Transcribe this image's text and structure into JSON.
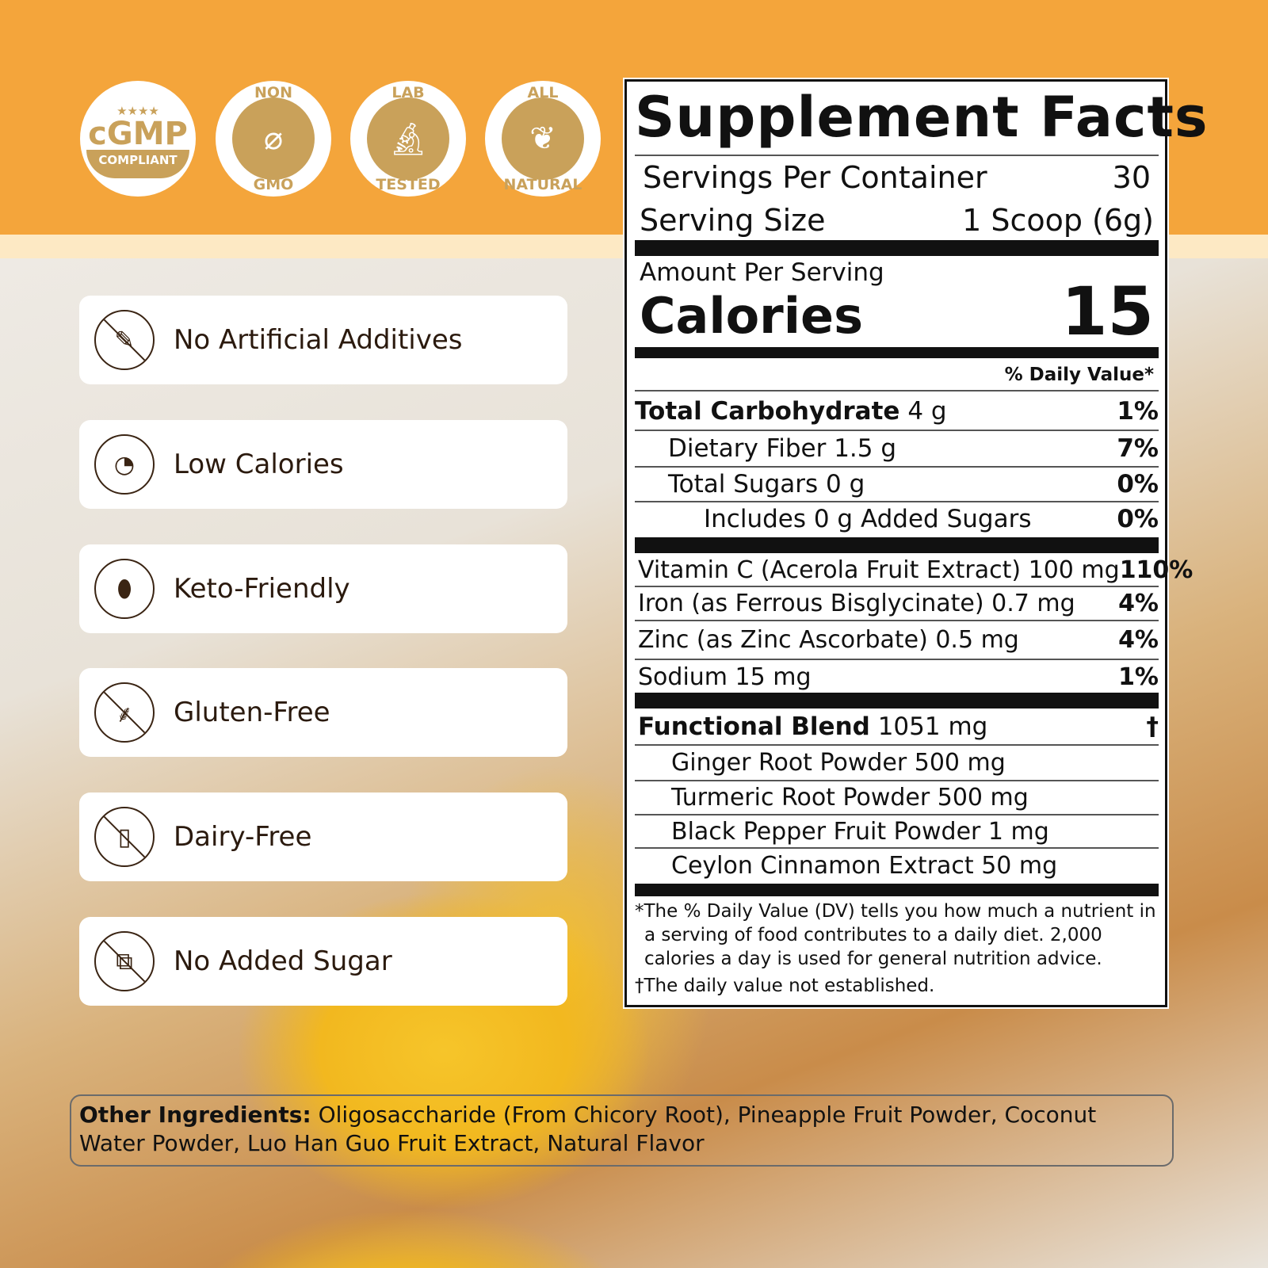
{
  "badges": [
    {
      "top": "",
      "main": "cGMP",
      "bottom": "COMPLIANT",
      "stars": "★★★★",
      "icon": "stars-icon"
    },
    {
      "top": "NON",
      "bottom": "GMO",
      "icon": "dna-crossed-icon"
    },
    {
      "top": "LAB",
      "bottom": "TESTED",
      "icon": "microscope-icon"
    },
    {
      "top": "ALL",
      "bottom": "NATURAL",
      "icon": "leaves-icon"
    }
  ],
  "features": [
    {
      "label": "No Artificial Additives",
      "icon": "no-additives-icon"
    },
    {
      "label": "Low Calories",
      "icon": "low-calories-icon"
    },
    {
      "label": "Keto-Friendly",
      "icon": "avocado-icon"
    },
    {
      "label": "Gluten-Free",
      "icon": "no-wheat-icon"
    },
    {
      "label": "Dairy-Free",
      "icon": "no-milk-icon"
    },
    {
      "label": "No Added Sugar",
      "icon": "no-sugar-cubes-icon"
    }
  ],
  "facts": {
    "title": "Supplement Facts",
    "servings_label": "Servings Per Container",
    "servings_value": "30",
    "size_label": "Serving Size",
    "size_value": "1 Scoop (6g)",
    "amount_label": "Amount Per Serving",
    "calories_label": "Calories",
    "calories_value": "15",
    "dv_header": "% Daily Value*",
    "nutrients": [
      {
        "name": "Total Carbohydrate",
        "amount": "4 g",
        "dv": "1%"
      },
      {
        "name": "Dietary Fiber 1.5 g",
        "dv": "7%"
      },
      {
        "name": "Total Sugars 0 g",
        "dv": "0%"
      },
      {
        "name": "Includes 0 g Added Sugars",
        "dv": "0%"
      }
    ],
    "vitamins": [
      {
        "name": "Vitamin C (Acerola Fruit Extract) 100 mg",
        "dv": "110%"
      },
      {
        "name": "Iron (as Ferrous Bisglycinate) 0.7 mg",
        "dv": "4%"
      },
      {
        "name": "Zinc (as Zinc Ascorbate) 0.5 mg",
        "dv": "4%"
      },
      {
        "name": "Sodium 15 mg",
        "dv": "1%"
      }
    ],
    "blend": {
      "name": "Functional Blend",
      "amount": "1051 mg",
      "dv": "†",
      "items": [
        "Ginger Root Powder 500 mg",
        "Turmeric Root Powder 500 mg",
        "Black Pepper Fruit Powder 1 mg",
        "Ceylon Cinnamon Extract 50 mg"
      ]
    },
    "footnote1": "*The % Daily Value (DV) tells you how much a nutrient in a serving of food contributes to a daily diet. 2,000 calories a day is used for general nutrition advice.",
    "footnote2": "†The daily value not established."
  },
  "ingredients": {
    "label": "Other Ingredients:",
    "text": " Oligosaccharide (From Chicory Root), Pineapple Fruit Powder, Coconut Water Powder, Luo Han Guo Fruit Extract, Natural Flavor"
  },
  "colors": {
    "orange": "#f4a53b",
    "gold": "#c9a15a",
    "brown": "#3a2413"
  }
}
